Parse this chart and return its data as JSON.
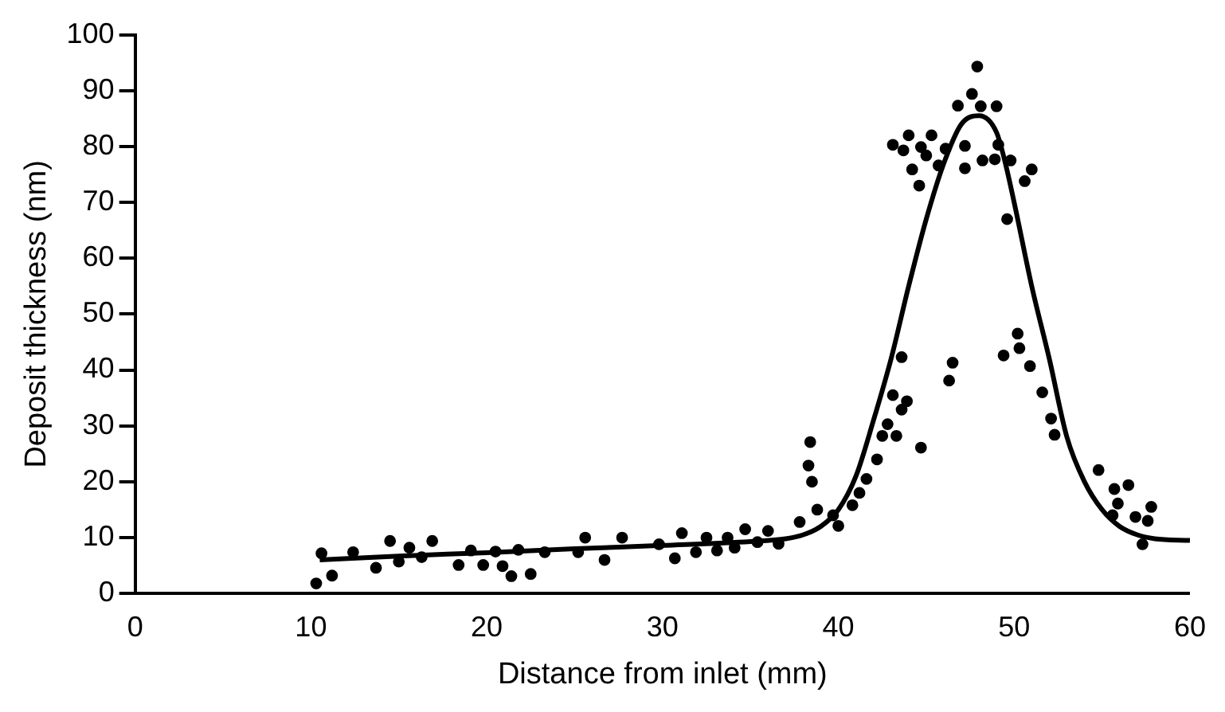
{
  "chart_data": {
    "type": "scatter",
    "xlabel": "Distance from inlet (mm)",
    "ylabel": "Deposit thickness (nm)",
    "xlim": [
      0,
      60
    ],
    "xticks": [
      0,
      10,
      20,
      30,
      40,
      50,
      60
    ],
    "ylim": [
      0,
      100
    ],
    "yticks": [
      0,
      10,
      20,
      30,
      40,
      50,
      60,
      70,
      80,
      90,
      100
    ],
    "grid": false,
    "legend": false,
    "series": [
      {
        "type": "scatter",
        "color": "#000000",
        "marker": "circle",
        "x": [
          10.3,
          10.6,
          11.2,
          12.4,
          13.7,
          14.5,
          15.0,
          15.6,
          16.3,
          16.9,
          18.4,
          19.1,
          19.8,
          20.5,
          20.9,
          21.4,
          21.8,
          22.5,
          23.3,
          25.2,
          25.6,
          26.7,
          27.7,
          29.8,
          30.7,
          31.1,
          31.9,
          32.5,
          33.1,
          33.7,
          34.1,
          34.7,
          35.4,
          36.0,
          36.6,
          37.8,
          38.4,
          38.3,
          38.5,
          38.8,
          39.7,
          40.0,
          40.8,
          41.2,
          41.6,
          42.2,
          42.5,
          42.8,
          43.1,
          43.6,
          43.6,
          43.9,
          43.3,
          44.7,
          46.3,
          46.5,
          43.1,
          44.0,
          43.7,
          44.7,
          44.2,
          44.6,
          45.3,
          45.0,
          45.7,
          46.1,
          46.8,
          47.2,
          47.2,
          47.6,
          47.9,
          48.1,
          49.0,
          48.2,
          48.9,
          49.1,
          49.8,
          49.6,
          50.6,
          51.0,
          49.4,
          50.2,
          50.3,
          50.9,
          51.6,
          52.1,
          52.3,
          54.8,
          55.7,
          56.5,
          55.9,
          55.6,
          56.9,
          57.8,
          57.6,
          57.3
        ],
        "values": [
          1.8,
          7.2,
          3.2,
          7.4,
          4.6,
          9.4,
          5.7,
          8.2,
          6.5,
          9.4,
          5.1,
          7.7,
          5.1,
          7.5,
          4.9,
          3.1,
          7.8,
          3.5,
          7.4,
          7.4,
          10,
          6,
          10,
          8.8,
          6.3,
          10.8,
          7.4,
          10,
          7.7,
          10,
          8.2,
          11.5,
          9.2,
          11.2,
          8.9,
          12.8,
          27.1,
          22.9,
          20.0,
          15.0,
          14.0,
          12.1,
          15.8,
          18.0,
          20.5,
          24.0,
          28.2,
          30.3,
          35.5,
          42.3,
          32.9,
          34.4,
          28.2,
          26.1,
          38.1,
          41.3,
          80.3,
          82.0,
          79.3,
          79.9,
          75.9,
          73.0,
          82.0,
          78.4,
          76.6,
          79.6,
          87.3,
          80.1,
          76.1,
          89.4,
          94.3,
          87.2,
          87.2,
          77.5,
          77.7,
          80.3,
          77.5,
          67.0,
          73.8,
          75.9,
          42.6,
          46.5,
          43.9,
          40.7,
          36.0,
          31.3,
          28.4,
          22.1,
          18.7,
          19.4,
          16.1,
          14.0,
          13.7,
          15.5,
          13.0,
          8.8
        ]
      },
      {
        "type": "line",
        "color": "#000000",
        "marker": "none",
        "line_style": "solid",
        "x": [
          10.5,
          15,
          20,
          25,
          30,
          35,
          37,
          38,
          39,
          40,
          41,
          42,
          43,
          44,
          45,
          46,
          47,
          48,
          49,
          49.5,
          50,
          51,
          52,
          53,
          54,
          55,
          56,
          57,
          58,
          60
        ],
        "values": [
          6,
          6.7,
          7.3,
          8,
          8.6,
          9.3,
          9.8,
          10.5,
          12,
          15,
          21,
          31,
          42,
          55,
          67,
          77,
          84,
          85.5,
          82.5,
          77,
          70,
          55,
          42,
          28,
          20,
          15,
          12,
          10.5,
          9.8,
          9.5
        ]
      }
    ]
  }
}
